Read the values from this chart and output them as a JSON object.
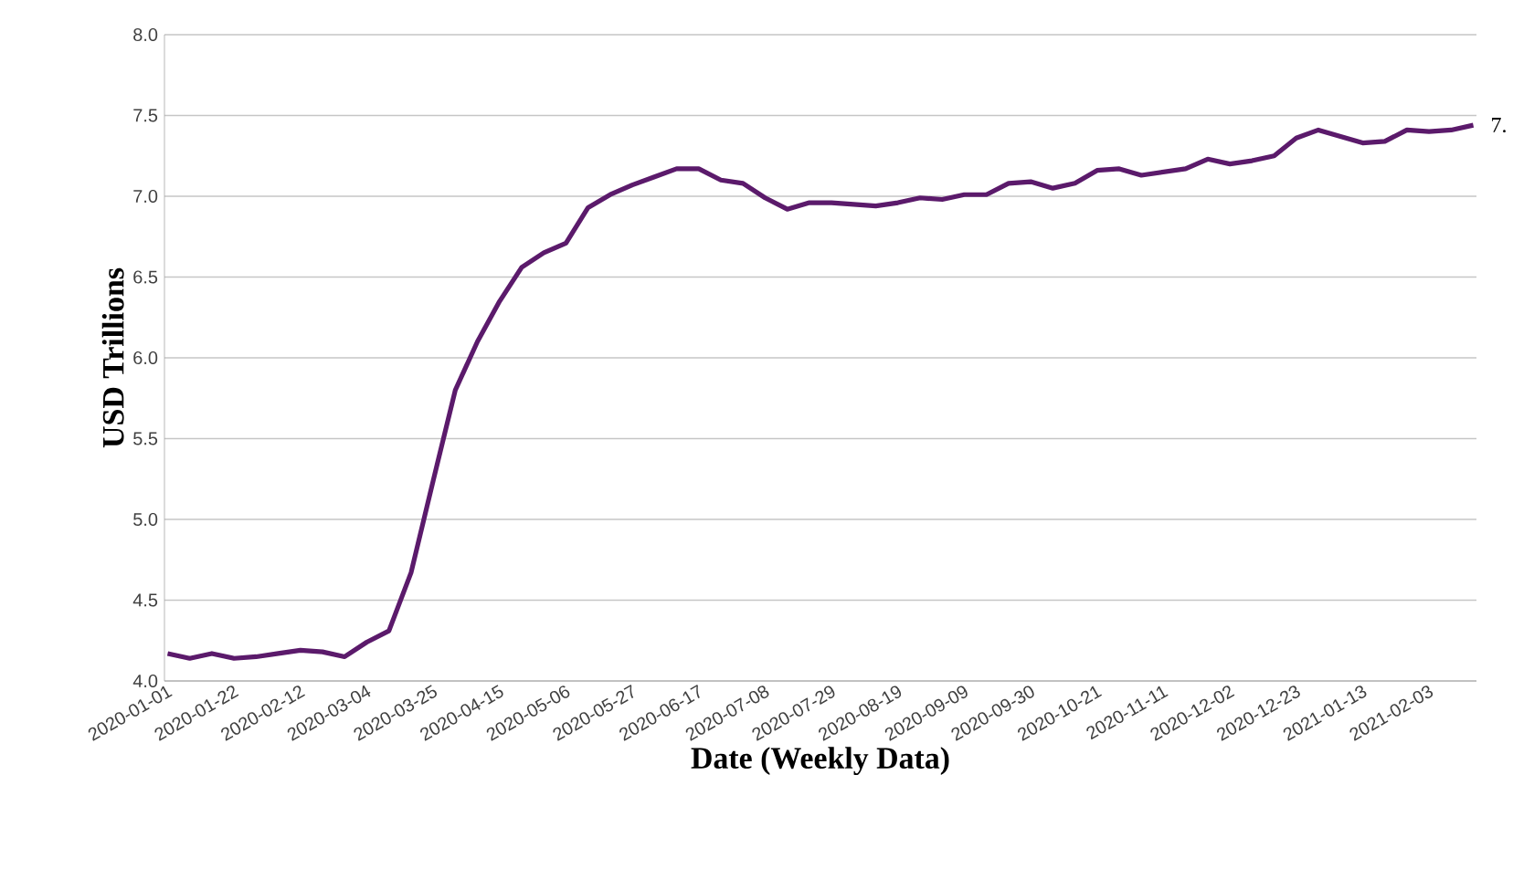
{
  "chart_data": {
    "type": "line",
    "xlabel": "Date (Weekly Data)",
    "ylabel": "USD Trillions",
    "x": [
      "2020-01-01",
      "2020-01-08",
      "2020-01-15",
      "2020-01-22",
      "2020-01-29",
      "2020-02-05",
      "2020-02-12",
      "2020-02-19",
      "2020-02-26",
      "2020-03-04",
      "2020-03-11",
      "2020-03-18",
      "2020-03-25",
      "2020-04-01",
      "2020-04-08",
      "2020-04-15",
      "2020-04-22",
      "2020-04-29",
      "2020-05-06",
      "2020-05-13",
      "2020-05-20",
      "2020-05-27",
      "2020-06-03",
      "2020-06-10",
      "2020-06-17",
      "2020-06-24",
      "2020-07-01",
      "2020-07-08",
      "2020-07-15",
      "2020-07-22",
      "2020-07-29",
      "2020-08-05",
      "2020-08-12",
      "2020-08-19",
      "2020-08-26",
      "2020-09-02",
      "2020-09-09",
      "2020-09-16",
      "2020-09-23",
      "2020-09-30",
      "2020-10-07",
      "2020-10-14",
      "2020-10-21",
      "2020-10-28",
      "2020-11-04",
      "2020-11-11",
      "2020-11-18",
      "2020-11-25",
      "2020-12-02",
      "2020-12-09",
      "2020-12-16",
      "2020-12-23",
      "2020-12-30",
      "2021-01-06",
      "2021-01-13",
      "2021-01-20",
      "2021-01-27",
      "2021-02-03",
      "2021-02-10",
      "2021-02-17"
    ],
    "series": [
      {
        "color": "#5b1a6b",
        "values": [
          4.17,
          4.14,
          4.17,
          4.14,
          4.15,
          4.17,
          4.19,
          4.18,
          4.15,
          4.24,
          4.31,
          4.67,
          5.24,
          5.8,
          6.1,
          6.35,
          6.56,
          6.65,
          6.71,
          6.93,
          7.01,
          7.07,
          7.12,
          7.17,
          7.17,
          7.1,
          7.08,
          6.99,
          6.92,
          6.96,
          6.96,
          6.95,
          6.94,
          6.96,
          6.99,
          6.98,
          7.01,
          7.01,
          7.08,
          7.09,
          7.05,
          7.08,
          7.16,
          7.17,
          7.13,
          7.15,
          7.17,
          7.23,
          7.2,
          7.22,
          7.25,
          7.36,
          7.41,
          7.37,
          7.33,
          7.34,
          7.41,
          7.4,
          7.41,
          7.44
        ]
      }
    ],
    "xlim": [
      "2019-12-31",
      "2021-02-18"
    ],
    "xticks": [
      "2020-01-01",
      "2020-01-22",
      "2020-02-12",
      "2020-03-04",
      "2020-03-25",
      "2020-04-15",
      "2020-05-06",
      "2020-05-27",
      "2020-06-17",
      "2020-07-08",
      "2020-07-29",
      "2020-08-19",
      "2020-09-09",
      "2020-09-30",
      "2020-10-21",
      "2020-11-11",
      "2020-12-02",
      "2020-12-23",
      "2021-01-13",
      "2021-02-03"
    ],
    "ylim": [
      4.0,
      8.0
    ],
    "yticks": [
      {
        "value": 4.0,
        "label": "4.0"
      },
      {
        "value": 4.5,
        "label": "4.5"
      },
      {
        "value": 5.0,
        "label": "5.0"
      },
      {
        "value": 5.5,
        "label": "5.5"
      },
      {
        "value": 6.0,
        "label": "6.0"
      },
      {
        "value": 6.5,
        "label": "6.5"
      },
      {
        "value": 7.0,
        "label": "7.0"
      },
      {
        "value": 7.5,
        "label": "7.5"
      },
      {
        "value": 8.0,
        "label": "8.0"
      }
    ],
    "annotations": [
      {
        "text": "7.",
        "x": "2021-02-17",
        "y": 7.44
      }
    ],
    "grid": "y",
    "marker": "none",
    "line_style": "solid"
  }
}
